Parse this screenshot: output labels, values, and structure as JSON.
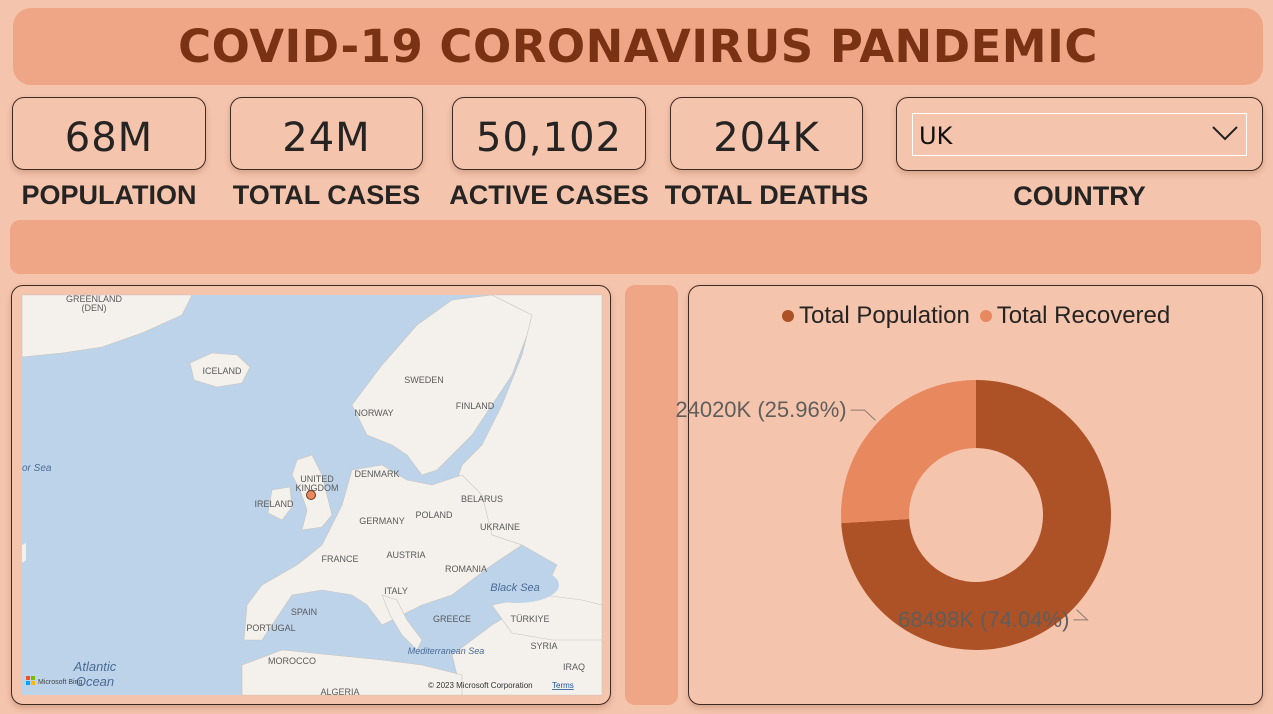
{
  "title": "COVID-19 CORONAVIRUS PANDEMIC",
  "kpis": [
    {
      "value": "68M",
      "label": "POPULATION"
    },
    {
      "value": "24M",
      "label": "TOTAL CASES"
    },
    {
      "value": "50,102",
      "label": "ACTIVE CASES"
    },
    {
      "value": "204K",
      "label": "TOTAL DEATHS"
    }
  ],
  "slicer": {
    "value": "UK",
    "label": "COUNTRY",
    "icon": "chevron-down-icon"
  },
  "map": {
    "labels": [
      "GREENLAND",
      "(DEN)",
      "ICELAND",
      "SWEDEN",
      "NORWAY",
      "FINLAND",
      "UNITED",
      "KINGDOM",
      "DENMARK",
      "IRELAND",
      "BELARUS",
      "POLAND",
      "GERMANY",
      "UKRAINE",
      "FRANCE",
      "AUSTRIA",
      "ROMANIA",
      "ITALY",
      "SPAIN",
      "PORTUGAL",
      "GREECE",
      "TÜRKIYE",
      "MOROCCO",
      "SYRIA",
      "IRAQ",
      "ALGERIA"
    ],
    "seas": [
      "or Sea",
      "Black Sea",
      "Mediterranean Sea",
      "Atlantic",
      "Ocean"
    ],
    "copyright": "© 2023 Microsoft Corporation",
    "terms": "Terms",
    "brand": "Microsoft Bing"
  },
  "colors": {
    "background": "#f5c4ad",
    "banner": "#efa687",
    "title": "#7a3214",
    "population": "#ad5126",
    "recovered": "#e8885e"
  },
  "chart_data": {
    "type": "pie",
    "donut": true,
    "legend": "top",
    "categories": [
      "Total Population",
      "Total Recovered"
    ],
    "values": [
      68498,
      24020
    ],
    "value_labels": [
      "68498K (74.04%)",
      "24020K (25.96%)"
    ],
    "colors": [
      "#ad5126",
      "#e8885e"
    ]
  }
}
